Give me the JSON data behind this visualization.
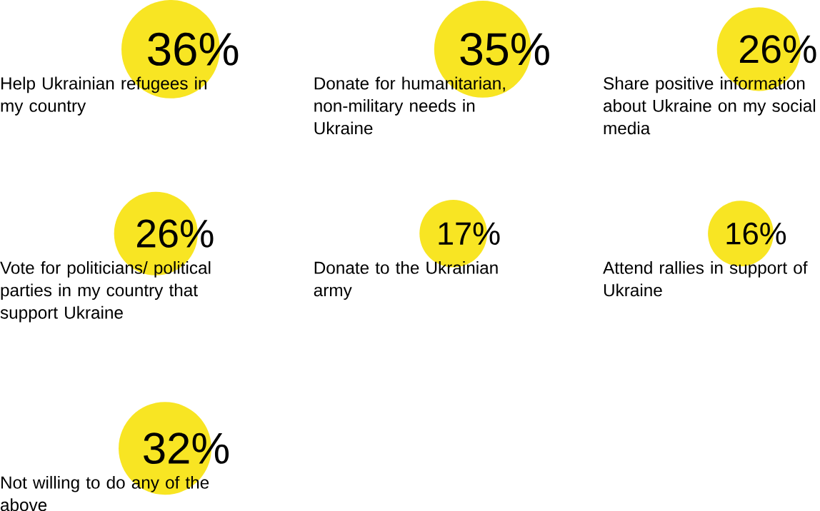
{
  "chart_data": {
    "type": "other",
    "categories": [
      "Help Ukrainian refugees in my country",
      "Donate for humanitarian, non-military needs in Ukraine",
      "Share positive information about Ukraine on my social media",
      "Vote for politicians/ political parties in my country that support Ukraine",
      "Donate to the Ukrainian army",
      "Attend rallies in support of Ukraine",
      "Not willing to do any of the above"
    ],
    "values": [
      36,
      35,
      26,
      26,
      17,
      16,
      32
    ],
    "value_labels": [
      "36%",
      "35%",
      "26%",
      "26%",
      "17%",
      "16%",
      "32%"
    ],
    "color": "#f8e523"
  }
}
